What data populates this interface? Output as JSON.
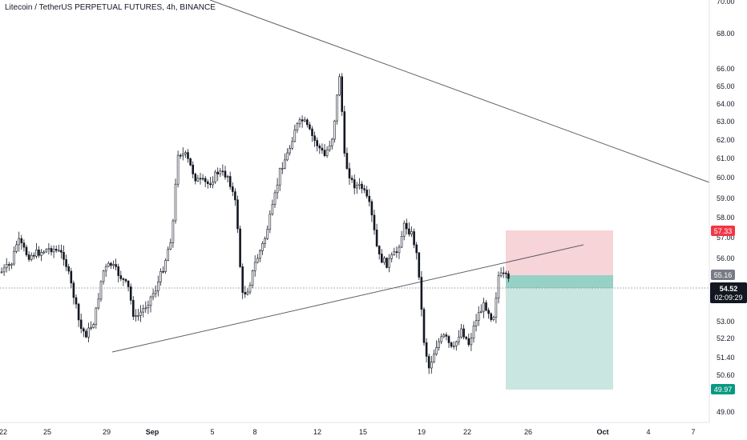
{
  "header": {
    "symbol_title": "Litecoin / TetherUS PERPETUAL FUTURES, 4h, BINANCE"
  },
  "chart_data": {
    "type": "candlestick",
    "title": "Litecoin / TetherUS PERPETUAL FUTURES, 4h, BINANCE",
    "y_ticks": [
      "70.00",
      "68.00",
      "66.00",
      "65.00",
      "64.00",
      "63.00",
      "62.00",
      "61.00",
      "60.00",
      "59.00",
      "58.00",
      "57.00",
      "56.00",
      "53.00",
      "52.20",
      "51.40",
      "50.60",
      "49.00"
    ],
    "x_ticks": [
      "22",
      "25",
      "29",
      "Sep",
      "5",
      "8",
      "12",
      "15",
      "19",
      "22",
      "26",
      "Oct",
      "4",
      "7"
    ],
    "price_tags": [
      {
        "label": "57.33",
        "color": "#f23645",
        "kind": "stop"
      },
      {
        "label": "55.16",
        "color": "#787b86",
        "kind": "entry"
      },
      {
        "label": "54.52",
        "color": "#131722",
        "kind": "last"
      },
      {
        "label": "49.97",
        "color": "#089981",
        "kind": "target"
      }
    ],
    "last_price": "54.52",
    "countdown": "02:09:29",
    "position": {
      "side": "short",
      "entry": 55.16,
      "stop": 57.33,
      "target": 49.97
    },
    "trendlines": [
      {
        "name": "descending-resistance",
        "from": [
          "Aug 23",
          71.0
        ],
        "to": [
          "Oct 8",
          59.7
        ]
      },
      {
        "name": "ascending-support",
        "from": [
          "Aug 28",
          51.6
        ],
        "to": [
          "Sep 27",
          56.6
        ]
      }
    ],
    "colors": {
      "up": "#131722",
      "down": "#131722",
      "stop_zone": "#f7d4d7",
      "target_zone": "#c9e7e0"
    }
  }
}
